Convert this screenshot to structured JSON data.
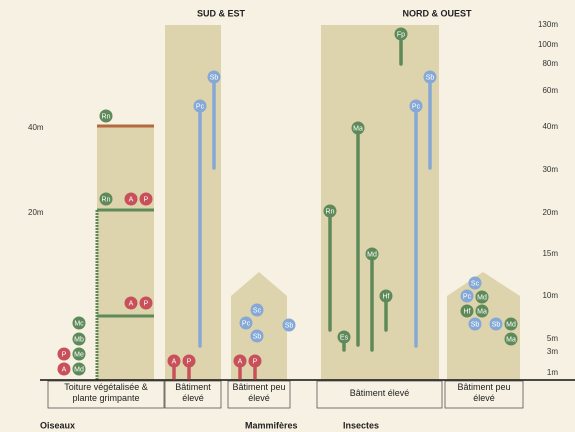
{
  "header": {
    "left": "SUD & EST",
    "right": "NORD & OUEST"
  },
  "left_axis": [
    "40m",
    "20m"
  ],
  "right_axis": [
    "130m",
    "100m",
    "80m",
    "60m",
    "40m",
    "30m",
    "20m",
    "15m",
    "10m",
    "5m",
    "3m",
    "1m"
  ],
  "buildings": [
    {
      "label": "Toiture végétalisée & plante grimpante",
      "markers": [
        {
          "label": "Rn",
          "color": "#5e8a5a"
        },
        {
          "label": "Rn",
          "color": "#5e8a5a"
        },
        {
          "label": "A",
          "color": "#c8505a"
        },
        {
          "label": "P",
          "color": "#c8505a"
        },
        {
          "label": "A",
          "color": "#c8505a"
        },
        {
          "label": "P",
          "color": "#c8505a"
        },
        {
          "label": "Mc",
          "color": "#5e8a5a"
        },
        {
          "label": "Mb",
          "color": "#5e8a5a"
        },
        {
          "label": "P",
          "color": "#c8505a"
        },
        {
          "label": "Me",
          "color": "#5e8a5a"
        },
        {
          "label": "A",
          "color": "#c8505a"
        },
        {
          "label": "Md",
          "color": "#5e8a5a"
        }
      ]
    },
    {
      "label": "Bâtiment élevé",
      "markers": [
        {
          "label": "Pc",
          "color": "#86a8d6"
        },
        {
          "label": "Sb",
          "color": "#86a8d6"
        },
        {
          "label": "A",
          "color": "#c8505a"
        },
        {
          "label": "P",
          "color": "#c8505a"
        }
      ]
    },
    {
      "label": "Bâtiment peu élevé",
      "markers": [
        {
          "label": "Sc",
          "color": "#86a8d6"
        },
        {
          "label": "Pc",
          "color": "#86a8d6"
        },
        {
          "label": "Sb",
          "color": "#86a8d6"
        },
        {
          "label": "Sb",
          "color": "#86a8d6"
        },
        {
          "label": "A",
          "color": "#c8505a"
        },
        {
          "label": "P",
          "color": "#c8505a"
        }
      ]
    },
    {
      "label": "Bâtiment élevé",
      "markers": [
        {
          "label": "Rn",
          "color": "#5e8a5a"
        },
        {
          "label": "Es",
          "color": "#5e8a5a"
        },
        {
          "label": "Ma",
          "color": "#5e8a5a"
        },
        {
          "label": "Md",
          "color": "#5e8a5a"
        },
        {
          "label": "Hf",
          "color": "#5e8a5a"
        },
        {
          "label": "Fp",
          "color": "#5e8a5a"
        },
        {
          "label": "Pc",
          "color": "#86a8d6"
        },
        {
          "label": "Sb",
          "color": "#86a8d6"
        }
      ]
    },
    {
      "label": "Bâtiment peu élevé",
      "markers": [
        {
          "label": "Sc",
          "color": "#86a8d6"
        },
        {
          "label": "Pc",
          "color": "#86a8d6"
        },
        {
          "label": "Md",
          "color": "#5e8a5a"
        },
        {
          "label": "Hf",
          "color": "#5e8a5a"
        },
        {
          "label": "Ma",
          "color": "#5e8a5a"
        },
        {
          "label": "Sb",
          "color": "#86a8d6"
        },
        {
          "label": "Sb",
          "color": "#86a8d6"
        },
        {
          "label": "Md",
          "color": "#5e8a5a"
        },
        {
          "label": "Ma",
          "color": "#5e8a5a"
        }
      ]
    }
  ],
  "legend": [
    "Oiseaux",
    "Mammifères",
    "Insectes"
  ]
}
